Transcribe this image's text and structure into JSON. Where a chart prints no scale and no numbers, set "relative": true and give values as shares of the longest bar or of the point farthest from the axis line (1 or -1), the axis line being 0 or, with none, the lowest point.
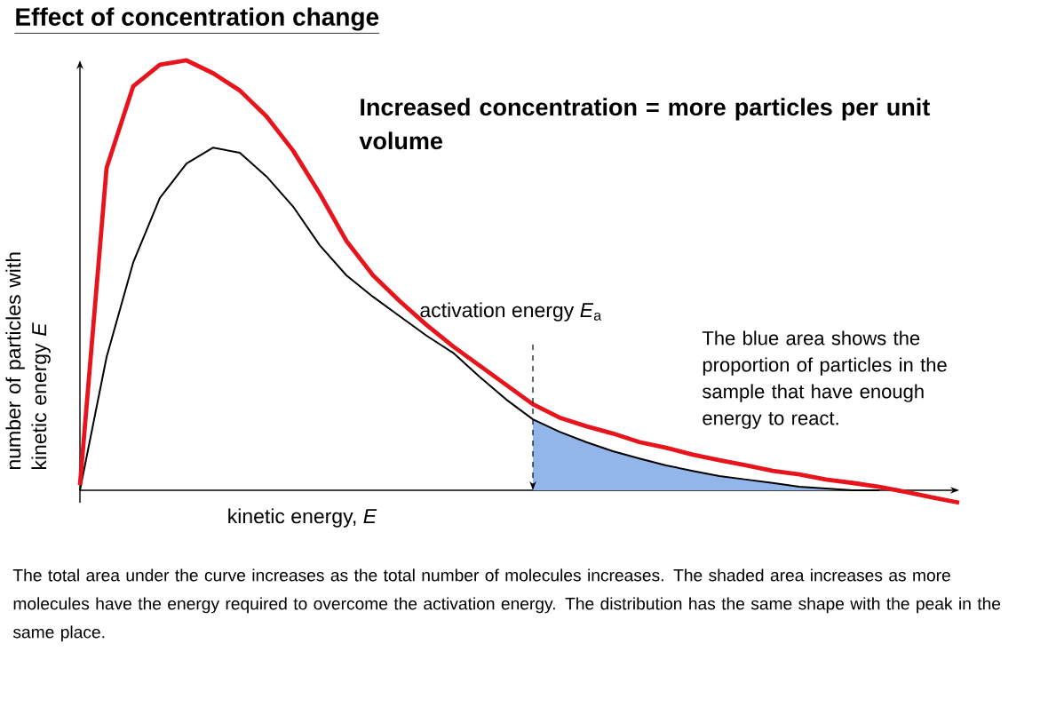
{
  "chart_data": {
    "type": "line",
    "relative": true,
    "title": "Effect of concentration change",
    "xlabel": "kinetic energy, *E*",
    "ylabel": "number of particles with kinetic energy *E*",
    "categories": [
      null,
      null,
      null,
      null,
      null,
      null,
      null,
      null,
      null,
      null,
      null,
      null,
      null,
      null,
      null,
      null,
      null,
      null,
      null,
      null,
      null,
      null,
      null,
      null,
      null,
      null,
      null,
      null,
      null,
      null,
      null,
      null,
      null,
      null
    ],
    "series": [
      {
        "type": "area",
        "color": "#92b6ea",
        "values": [
          null,
          null,
          null,
          null,
          null,
          null,
          null,
          null,
          null,
          null,
          null,
          null,
          null,
          null,
          null,
          null,
          null,
          0.165,
          0.136,
          0.112,
          0.091,
          0.074,
          0.058,
          0.045,
          0.033,
          0.025,
          0.017,
          0.008,
          0.004,
          0,
          0,
          null,
          null,
          null
        ]
      },
      {
        "color": "#000000",
        "values": [
          0,
          0.31,
          0.53,
          0.68,
          0.76,
          0.797,
          0.785,
          0.73,
          0.66,
          0.57,
          0.5,
          0.45,
          0.405,
          0.36,
          0.32,
          0.264,
          0.211,
          0.165,
          0.136,
          0.112,
          0.091,
          0.074,
          0.058,
          0.045,
          0.033,
          0.025,
          0.017,
          0.008,
          0.004,
          0,
          0,
          null,
          null,
          null
        ]
      },
      {
        "color": "#e8141b",
        "values": [
          0.012,
          0.75,
          0.94,
          0.99,
          1,
          0.97,
          0.93,
          0.87,
          0.79,
          0.69,
          0.58,
          0.5,
          0.44,
          0.385,
          0.335,
          0.29,
          0.245,
          0.2,
          0.169,
          0.149,
          0.132,
          0.112,
          0.099,
          0.083,
          0.07,
          0.058,
          0.045,
          0.037,
          0.025,
          0.017,
          0.008,
          -0.004,
          -0.017,
          -0.029
        ]
      }
    ],
    "annotations": [
      "Increased concentration = more particles per unit volume",
      "The blue area shows the proportion of particles in the sample that have enough energy to react.",
      "The total area under the curve increases as the total number of molecules increases. The shaded area increases as more molecules have the energy required to overcome the activation energy. The distribution has the same shape with the peak in the same place.",
      "activation energy *E*$_{a}$"
    ]
  }
}
